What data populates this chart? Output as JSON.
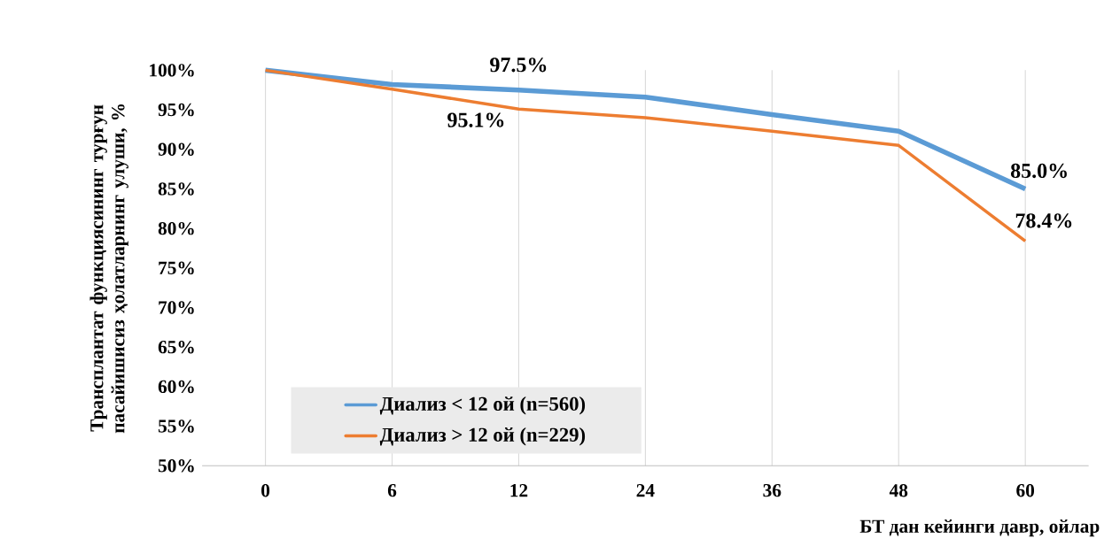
{
  "chart_data": {
    "type": "line",
    "xlabel": "БТ дан кейинги давр, ойлар",
    "ylabel": "Трансплантат функциясининг турғун пасайишисиз ҳолатларнинг улуши, %",
    "categories": [
      "0",
      "6",
      "12",
      "24",
      "36",
      "48",
      "60"
    ],
    "series": [
      {
        "name": "Диализ < 12 ой (n=560)",
        "color": "#5b9bd5",
        "values": [
          100,
          98.2,
          97.5,
          96.6,
          94.4,
          92.3,
          85.0
        ],
        "value_labels": [
          null,
          null,
          "97.5%",
          null,
          null,
          null,
          "85.0%"
        ]
      },
      {
        "name": "Диализ > 12 ой (n=229)",
        "color": "#ed7d31",
        "values": [
          100,
          97.6,
          95.1,
          94.0,
          92.3,
          90.5,
          78.4
        ],
        "value_labels": [
          null,
          null,
          "95.1%",
          null,
          null,
          null,
          "78.4%"
        ]
      }
    ],
    "ylim": [
      50,
      100
    ],
    "yticks": [
      {
        "value": 50,
        "label": "50%"
      },
      {
        "value": 55,
        "label": "55%"
      },
      {
        "value": 60,
        "label": "60%"
      },
      {
        "value": 65,
        "label": "65%"
      },
      {
        "value": 70,
        "label": "70%"
      },
      {
        "value": 75,
        "label": "75%"
      },
      {
        "value": 80,
        "label": "80%"
      },
      {
        "value": 85,
        "label": "85%"
      },
      {
        "value": 90,
        "label": "90%"
      },
      {
        "value": 95,
        "label": "95%"
      },
      {
        "value": 100,
        "label": "100%"
      }
    ],
    "grid": "x",
    "legend": "bottom left",
    "marker": "none",
    "line_style": "solid"
  }
}
